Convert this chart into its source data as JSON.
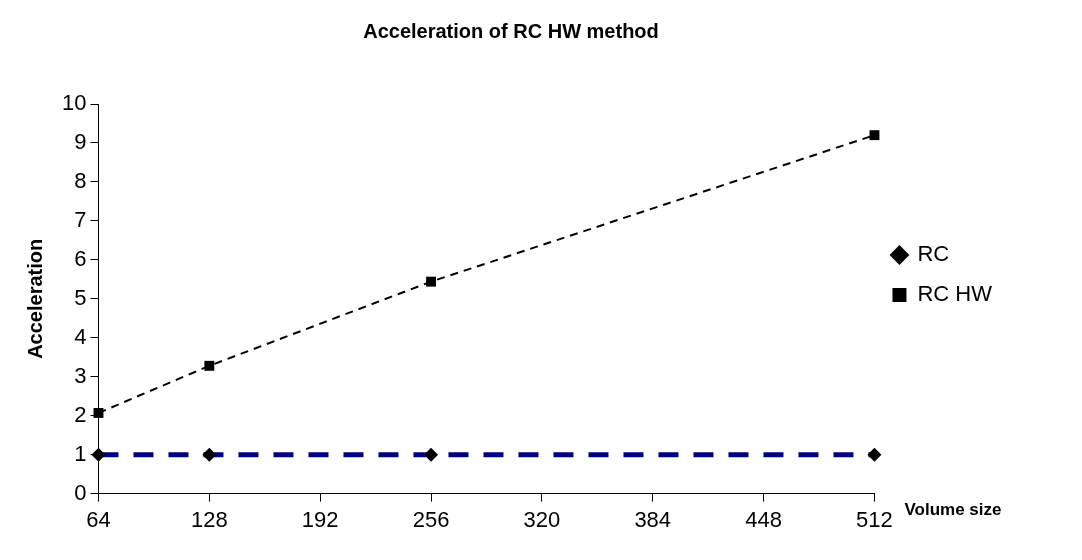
{
  "chart_data": {
    "type": "line",
    "title": "Acceleration of RC HW method",
    "xlabel": "Volume size",
    "ylabel": "Acceleration",
    "x": [
      64,
      128,
      256,
      512
    ],
    "series": [
      {
        "name": "RC",
        "color": "#000080",
        "values": [
          1,
          1,
          1,
          1
        ],
        "marker": "diamond",
        "line_style": "dashed"
      },
      {
        "name": "RC HW",
        "color": "#000000",
        "values": [
          2.07,
          3.28,
          5.44,
          9.2
        ],
        "marker": "square",
        "line_style": "dashed"
      }
    ],
    "xlim": [
      64,
      512
    ],
    "xticks": [
      64,
      128,
      192,
      256,
      320,
      384,
      448,
      512
    ],
    "ylim": [
      0,
      10
    ],
    "yticks": [
      0,
      1,
      2,
      3,
      4,
      5,
      6,
      7,
      8,
      9,
      10
    ],
    "grid": false,
    "legend": "right"
  }
}
